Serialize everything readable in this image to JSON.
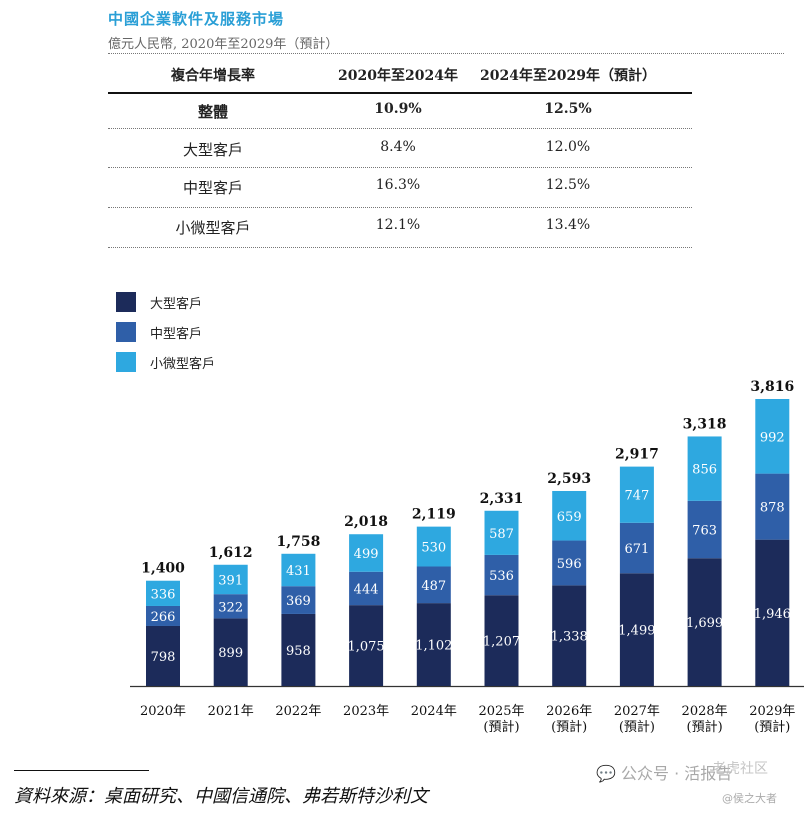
{
  "header": {
    "title": "中國企業軟件及服務市場",
    "subtitle": "億元人民幣, 2020年至2029年（預計）"
  },
  "table": {
    "headers": [
      "複合年增長率",
      "2020年至2024年",
      "2024年至2029年（預計）"
    ],
    "rows": [
      {
        "label": "整體",
        "c1": "10.9%",
        "c2": "12.5%",
        "bold": true
      },
      {
        "label": "大型客戶",
        "c1": "8.4%",
        "c2": "12.0%"
      },
      {
        "label": "中型客戶",
        "c1": "16.3%",
        "c2": "12.5%"
      },
      {
        "label": "小微型客戶",
        "c1": "12.1%",
        "c2": "13.4%"
      }
    ]
  },
  "legend": [
    {
      "label": "大型客戶",
      "color": "#1c2b5a"
    },
    {
      "label": "中型客戶",
      "color": "#2f5fa8"
    },
    {
      "label": "小微型客戶",
      "color": "#2ea8e0"
    }
  ],
  "chart_data": {
    "type": "bar",
    "stacked": true,
    "title": "中國企業軟件及服務市場",
    "ylabel": "億元人民幣",
    "categories": [
      "2020年",
      "2021年",
      "2022年",
      "2023年",
      "2024年",
      "2025年",
      "2026年",
      "2027年",
      "2028年",
      "2029年"
    ],
    "category_notes": [
      "",
      "",
      "",
      "",
      "",
      "(預計)",
      "(預計)",
      "(預計)",
      "(預計)",
      "(預計)"
    ],
    "series": [
      {
        "name": "大型客戶",
        "color": "#1c2b5a",
        "labels": [
          "798",
          "899",
          "958",
          "1,075",
          "1,102",
          "1,207",
          "1,338",
          "1,499",
          "1,699",
          "1,946"
        ],
        "values": [
          798,
          899,
          958,
          1075,
          1102,
          1207,
          1338,
          1499,
          1699,
          1946
        ]
      },
      {
        "name": "中型客戶",
        "color": "#2f5fa8",
        "labels": [
          "266",
          "322",
          "369",
          "444",
          "487",
          "536",
          "596",
          "671",
          "763",
          "878"
        ],
        "values": [
          266,
          322,
          369,
          444,
          487,
          536,
          596,
          671,
          763,
          878
        ]
      },
      {
        "name": "小微型客戶",
        "color": "#2ea8e0",
        "labels": [
          "336",
          "391",
          "431",
          "499",
          "530",
          "587",
          "659",
          "747",
          "856",
          "992"
        ],
        "values": [
          336,
          391,
          431,
          499,
          530,
          587,
          659,
          747,
          856,
          992
        ]
      }
    ],
    "totals": [
      1400,
      1612,
      1758,
      2018,
      2119,
      2331,
      2593,
      2917,
      3318,
      3816
    ],
    "total_labels": [
      "1,400",
      "1,612",
      "1,758",
      "2,018",
      "2,119",
      "2,331",
      "2,593",
      "2,917",
      "3,318",
      "3,816"
    ],
    "ylim": [
      0,
      3816
    ]
  },
  "footer": {
    "source": "資料來源：桌面研究、中國信通院、弗若斯特沙利文"
  },
  "watermark": {
    "text": "公众号 · 活报告",
    "text2": "@侯之大者",
    "overlay": "老虎社区"
  }
}
